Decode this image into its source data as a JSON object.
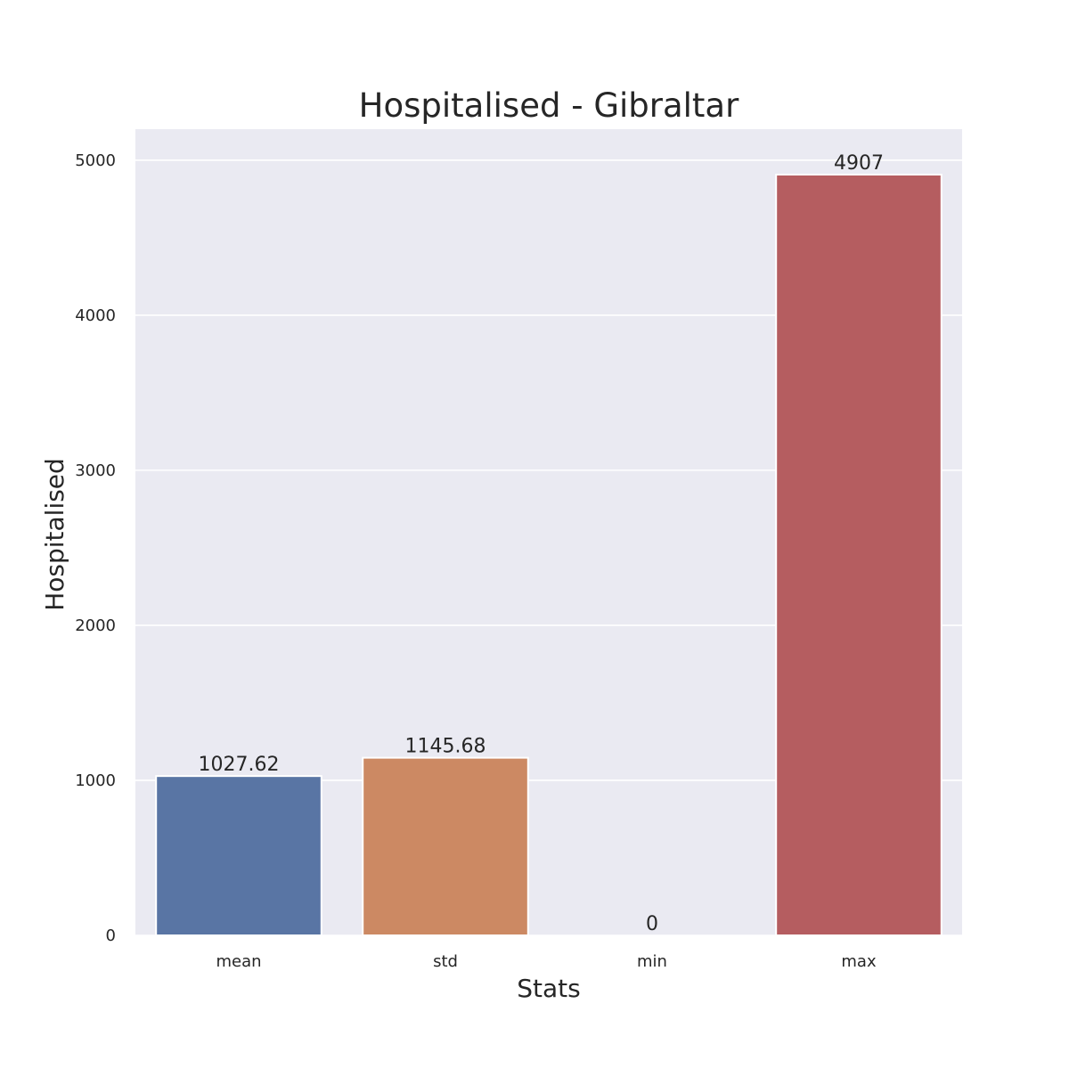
{
  "chart_data": {
    "type": "bar",
    "title": "Hospitalised - Gibraltar",
    "xlabel": "Stats",
    "ylabel": "Hospitalised",
    "categories": [
      "mean",
      "std",
      "min",
      "max"
    ],
    "values": [
      1027.62,
      1145.68,
      0,
      4907
    ],
    "value_labels": [
      "1027.62",
      "1145.68",
      "0",
      "4907"
    ],
    "colors": [
      "#5975a4",
      "#cc8963",
      "#5f9e6e",
      "#b55d60"
    ],
    "ylim": [
      0,
      5200
    ],
    "yticks": [
      0,
      1000,
      2000,
      3000,
      4000,
      5000
    ],
    "ytick_labels": [
      "0",
      "1000",
      "2000",
      "3000",
      "4000",
      "5000"
    ],
    "grid": true,
    "background": "#eaeaf2",
    "gridcolor": "#ffffff"
  }
}
